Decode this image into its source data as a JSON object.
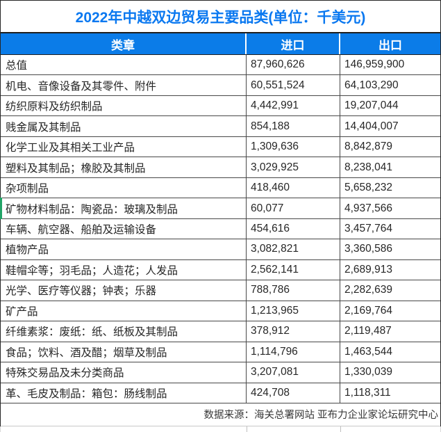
{
  "colors": {
    "header_bg": "#0b7ce8",
    "title_text": "#0a78f0",
    "row_marker_green": "#21a366"
  },
  "chart_data": {
    "type": "table",
    "title": "2022年中越双边贸易主要品类(单位：千美元)",
    "columns": [
      "类章",
      "进口",
      "出口"
    ],
    "rows": [
      [
        "总值",
        "87,960,626",
        "146,959,900"
      ],
      [
        "机电、音像设备及其零件、附件",
        "60,551,524",
        "64,103,290"
      ],
      [
        "纺织原料及纺织制品",
        "4,442,991",
        "19,207,044"
      ],
      [
        "贱金属及其制品",
        "854,188",
        "14,404,007"
      ],
      [
        "化学工业及其相关工业产品",
        "1,309,636",
        "8,842,879"
      ],
      [
        "塑料及其制品；橡胶及其制品",
        "3,029,925",
        "8,238,041"
      ],
      [
        "杂项制品",
        "418,460",
        "5,658,232"
      ],
      [
        "矿物材料制品：陶瓷品：玻璃及制品",
        "60,077",
        "4,937,566"
      ],
      [
        "车辆、航空器、船舶及运输设备",
        "454,616",
        "3,457,764"
      ],
      [
        "植物产品",
        "3,082,821",
        "3,360,586"
      ],
      [
        "鞋帽伞等；羽毛品；人造花；人发品",
        "2,562,141",
        "2,689,913"
      ],
      [
        "光学、医疗等仪器；钟表；乐器",
        "788,786",
        "2,282,639"
      ],
      [
        "矿产品",
        "1,213,965",
        "2,169,764"
      ],
      [
        "纤维素浆：废纸：纸、纸板及其制品",
        "378,912",
        "2,119,487"
      ],
      [
        "食品；饮料、酒及醋；烟草及制品",
        "1,114,796",
        "1,463,544"
      ],
      [
        "特殊交易品及未分类商品",
        "3,207,081",
        "1,330,039"
      ],
      [
        "革、毛皮及制品：箱包：肠线制品",
        "424,708",
        "1,118,311"
      ]
    ],
    "marked_row_index": 7,
    "source": "数据来源：海关总署网站 亚布力企业家论坛研究中心",
    "legend_position": "none",
    "grid": true
  }
}
